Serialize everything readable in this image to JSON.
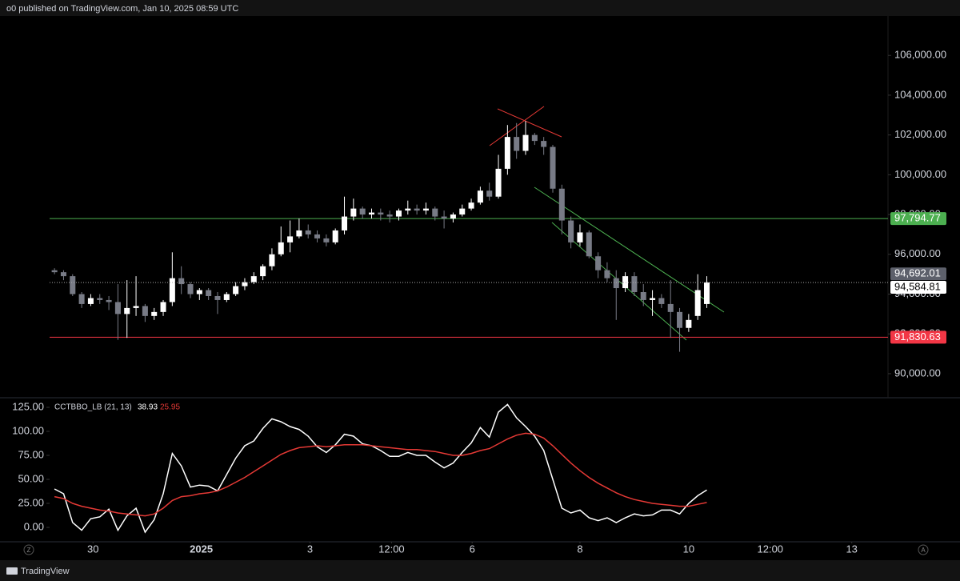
{
  "header": {
    "text": "o0 published on TradingView.com, Jan 10, 2025 08:59 UTC"
  },
  "footer": {
    "brand": "TradingView",
    "axis_buttons": [
      "Z",
      "A"
    ]
  },
  "chart_data": [
    {
      "type": "candlestick",
      "up_color": "#ffffff",
      "down_color": "#787b86",
      "ohlc": [
        [
          95200,
          95300,
          95000,
          95100
        ],
        [
          95100,
          95200,
          94700,
          94900
        ],
        [
          94900,
          95000,
          93900,
          94000
        ],
        [
          94000,
          94100,
          93300,
          93500
        ],
        [
          93500,
          94000,
          93400,
          93800
        ],
        [
          93800,
          94000,
          93500,
          93700
        ],
        [
          93700,
          93900,
          93200,
          93600
        ],
        [
          93600,
          94500,
          91700,
          93000
        ],
        [
          93000,
          94700,
          91800,
          93300
        ],
        [
          93300,
          94900,
          92900,
          93400
        ],
        [
          93400,
          93500,
          92600,
          92900
        ],
        [
          92900,
          93300,
          92700,
          93100
        ],
        [
          93100,
          93700,
          92900,
          93600
        ],
        [
          93600,
          96100,
          93400,
          94800
        ],
        [
          94800,
          95400,
          94000,
          94500
        ],
        [
          94500,
          94600,
          93800,
          94000
        ],
        [
          94000,
          94300,
          93700,
          94200
        ],
        [
          94200,
          94300,
          93700,
          93900
        ],
        [
          93900,
          94100,
          93000,
          93700
        ],
        [
          93700,
          94100,
          93600,
          94000
        ],
        [
          94000,
          94600,
          93900,
          94400
        ],
        [
          94400,
          94800,
          94200,
          94600
        ],
        [
          94600,
          95100,
          94500,
          94900
        ],
        [
          94900,
          95500,
          94700,
          95400
        ],
        [
          95400,
          96300,
          95200,
          96000
        ],
        [
          96000,
          97400,
          95900,
          96600
        ],
        [
          96600,
          97700,
          96100,
          96900
        ],
        [
          96900,
          97800,
          96800,
          97200
        ],
        [
          97200,
          97500,
          96800,
          97000
        ],
        [
          97000,
          97200,
          96600,
          96800
        ],
        [
          96800,
          97000,
          96400,
          96600
        ],
        [
          96600,
          97300,
          96500,
          97200
        ],
        [
          97200,
          98900,
          97000,
          97900
        ],
        [
          97900,
          98800,
          97700,
          98300
        ],
        [
          98300,
          98400,
          97800,
          98000
        ],
        [
          98000,
          98300,
          97800,
          98100
        ],
        [
          98100,
          98300,
          97700,
          98000
        ],
        [
          98000,
          98200,
          97600,
          97900
        ],
        [
          97900,
          98300,
          97700,
          98200
        ],
        [
          98200,
          98700,
          98000,
          98300
        ],
        [
          98300,
          98500,
          98000,
          98200
        ],
        [
          98200,
          98600,
          98000,
          98300
        ],
        [
          98300,
          98400,
          97700,
          97900
        ],
        [
          97900,
          98200,
          97300,
          97800
        ],
        [
          97800,
          98100,
          97600,
          98000
        ],
        [
          98000,
          98500,
          97900,
          98300
        ],
        [
          98300,
          98800,
          98200,
          98600
        ],
        [
          98600,
          99400,
          98500,
          99200
        ],
        [
          99200,
          99600,
          98700,
          98900
        ],
        [
          98900,
          101000,
          98800,
          100300
        ],
        [
          100300,
          102500,
          100000,
          101900
        ],
        [
          101900,
          102600,
          100800,
          101200
        ],
        [
          101200,
          102700,
          101000,
          102000
        ],
        [
          102000,
          102100,
          101500,
          101700
        ],
        [
          101700,
          101900,
          101000,
          101400
        ],
        [
          101400,
          101500,
          99100,
          99300
        ],
        [
          99300,
          99500,
          97000,
          97700
        ],
        [
          97700,
          97900,
          96300,
          96600
        ],
        [
          96600,
          97500,
          96400,
          97100
        ],
        [
          97100,
          97200,
          95800,
          95900
        ],
        [
          95900,
          96100,
          94800,
          95200
        ],
        [
          95200,
          95600,
          94600,
          94800
        ],
        [
          94800,
          95200,
          92700,
          94300
        ],
        [
          94300,
          95100,
          94100,
          94900
        ],
        [
          94900,
          95100,
          93900,
          94100
        ],
        [
          94100,
          94500,
          93400,
          93700
        ],
        [
          93700,
          94200,
          92900,
          93800
        ],
        [
          93800,
          94000,
          93300,
          93500
        ],
        [
          93500,
          94700,
          91800,
          93100
        ],
        [
          93100,
          93300,
          91100,
          92300
        ],
        [
          92300,
          93000,
          92100,
          92700
        ],
        [
          92900,
          95000,
          92700,
          94200
        ],
        [
          93500,
          94900,
          93300,
          94584.81
        ]
      ],
      "xlim": [
        -4.25,
        92
      ],
      "xticks": [
        {
          "value": 4.25,
          "label": "30"
        },
        {
          "value": 16.2,
          "label": "2025"
        },
        {
          "value": 28.2,
          "label": "3"
        },
        {
          "value": 37.2,
          "label": "12:00"
        },
        {
          "value": 46.1,
          "label": "6"
        },
        {
          "value": 58,
          "label": "8"
        },
        {
          "value": 70,
          "label": "10"
        },
        {
          "value": 79,
          "label": "12:00"
        },
        {
          "value": 88,
          "label": "13"
        }
      ],
      "ylim": [
        88790,
        107980
      ],
      "yticks": [
        {
          "value": 90000,
          "label": "90,000.00"
        },
        {
          "value": 92000,
          "label": "92,000.00"
        },
        {
          "value": 94000,
          "label": "94,000.00"
        },
        {
          "value": 96000,
          "label": "96,000.00"
        },
        {
          "value": 98000,
          "label": "98,000.00"
        },
        {
          "value": 100000,
          "label": "100,000.00"
        },
        {
          "value": 102000,
          "label": "102,000.00"
        },
        {
          "value": 104000,
          "label": "104,000.00"
        },
        {
          "value": 106000,
          "label": "106,000.00"
        }
      ],
      "hlines": [
        {
          "value": 97794.77,
          "label": "97,794.77",
          "color": "#4caf50"
        },
        {
          "value": 91830.63,
          "label": "91,830.63",
          "color": "#f23645"
        }
      ],
      "price_tags": [
        {
          "value": 94692.01,
          "label": "94,692.01",
          "color": "#5d606b"
        },
        {
          "value": 94584.81,
          "label": "94,584.81",
          "color": "#ffffff"
        }
      ]
    },
    {
      "type": "line",
      "title": "CCTBBO_LB (21, 13)",
      "series": [
        {
          "color": "#ffffff",
          "values": [
            40,
            35,
            5,
            -3,
            9,
            11,
            19,
            -3,
            12,
            20,
            -5,
            8,
            35,
            77,
            64,
            42,
            44,
            43,
            38,
            55,
            72,
            85,
            90,
            103,
            113,
            110,
            105,
            102,
            95,
            84,
            78,
            86,
            97,
            95,
            87,
            85,
            80,
            74,
            74,
            78,
            75,
            75,
            68,
            62,
            67,
            78,
            88,
            104,
            94,
            120,
            128,
            114,
            105,
            95,
            80,
            50,
            20,
            15,
            18,
            10,
            7,
            10,
            5,
            10,
            14,
            12,
            13,
            18,
            18,
            14,
            25,
            33,
            38.93
          ]
        },
        {
          "color": "#e53935",
          "values": [
            32,
            30,
            25,
            22,
            20,
            18,
            17,
            15,
            14,
            13,
            12,
            14,
            20,
            28,
            32,
            33,
            35,
            36,
            38,
            42,
            47,
            52,
            58,
            64,
            70,
            76,
            80,
            83,
            84,
            85,
            84,
            85,
            86,
            86,
            86,
            85,
            84,
            83,
            82,
            81,
            81,
            80,
            79,
            77,
            75,
            75,
            77,
            80,
            82,
            87,
            92,
            96,
            98,
            97,
            93,
            85,
            76,
            67,
            59,
            52,
            46,
            41,
            36,
            32,
            29,
            27,
            25,
            24,
            23,
            22,
            22,
            24,
            25.95
          ]
        }
      ],
      "legend_values": [
        38.93,
        25.95
      ],
      "xlim": [
        -4.25,
        92
      ],
      "ylim": [
        -15,
        135
      ],
      "yticks": [
        {
          "value": 0,
          "label": "0.00"
        },
        {
          "value": 25,
          "label": "25.00"
        },
        {
          "value": 50,
          "label": "50.00"
        },
        {
          "value": 75,
          "label": "75.00"
        },
        {
          "value": 100,
          "label": "100.00"
        },
        {
          "value": 125,
          "label": "125.00"
        }
      ]
    }
  ]
}
